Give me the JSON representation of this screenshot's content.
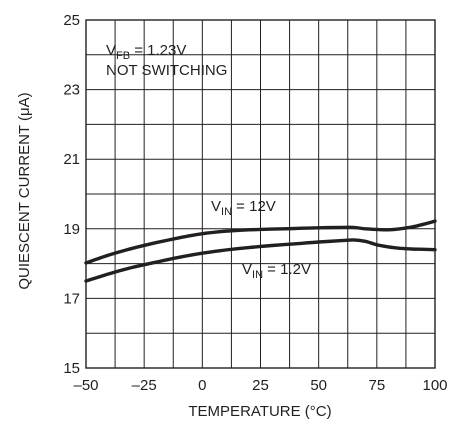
{
  "chart_data": {
    "type": "line",
    "title": "",
    "xlabel": "TEMPERATURE (°C)",
    "ylabel": "QUIESCENT CURRENT (μA)",
    "xlim": [
      -50,
      100
    ],
    "ylim": [
      15,
      25
    ],
    "xticks": [
      -50,
      -25,
      0,
      25,
      50,
      75,
      100
    ],
    "xtick_labels": [
      "–50",
      "–25",
      "0",
      "25",
      "50",
      "75",
      "100"
    ],
    "yticks": [
      15,
      17,
      19,
      21,
      23,
      25
    ],
    "ytick_labels": [
      "15",
      "17",
      "19",
      "21",
      "23",
      "25"
    ],
    "grid": true,
    "series": [
      {
        "name": "VIN = 12V",
        "x": [
          -50,
          -40,
          -30,
          -20,
          -10,
          0,
          10,
          20,
          30,
          40,
          50,
          60,
          65,
          70,
          75,
          80,
          85,
          90,
          95,
          100
        ],
        "y": [
          18.02,
          18.25,
          18.44,
          18.6,
          18.74,
          18.86,
          18.93,
          18.97,
          18.99,
          19.01,
          19.03,
          19.04,
          19.04,
          19.0,
          18.98,
          18.97,
          19.0,
          19.05,
          19.13,
          19.22
        ]
      },
      {
        "name": "VIN = 1.2V",
        "x": [
          -50,
          -40,
          -30,
          -20,
          -10,
          0,
          10,
          20,
          30,
          40,
          50,
          60,
          65,
          70,
          75,
          80,
          85,
          90,
          95,
          100
        ],
        "y": [
          17.5,
          17.71,
          17.89,
          18.04,
          18.18,
          18.3,
          18.39,
          18.46,
          18.52,
          18.57,
          18.62,
          18.66,
          18.68,
          18.64,
          18.54,
          18.48,
          18.44,
          18.42,
          18.41,
          18.4
        ]
      }
    ],
    "annotations": {
      "vfb": {
        "main": "V",
        "sub": "FB",
        "rest": " = 1.23V"
      },
      "mode": "NOT SWITCHING",
      "vin12": {
        "main": "V",
        "sub": "IN",
        "rest": " = 12V"
      },
      "vin1p2": {
        "main": "V",
        "sub": "IN",
        "rest": " = 1.2V"
      }
    },
    "colors": {
      "line": "#231f20",
      "grid": "#231f20",
      "background": "#ffffff"
    }
  }
}
